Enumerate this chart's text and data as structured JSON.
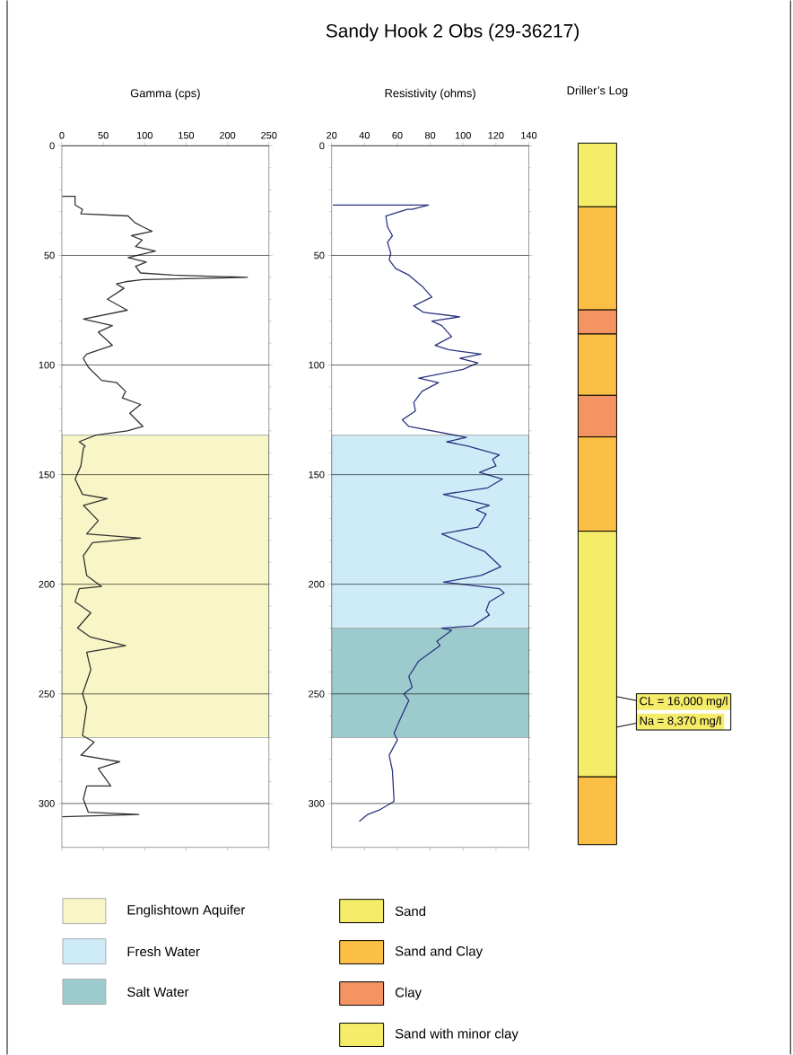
{
  "chart_data": [
    {
      "type": "line",
      "xlabel": "Gamma (cps)",
      "xlim": [
        0,
        250
      ],
      "xticks": [
        0,
        50,
        100,
        150,
        200,
        250
      ],
      "ylim": [
        320,
        0
      ],
      "yticks": [
        0,
        50,
        100,
        150,
        200,
        250,
        300
      ],
      "grid": "y",
      "legend": "bottom",
      "bands": [
        {
          "axis": "y",
          "from": 132,
          "to": 270,
          "label": "Englishtown Aquifer",
          "color": "#f8f6c6"
        }
      ],
      "series": [
        {
          "color": "#333333",
          "x": [
            1,
            16,
            16,
            25,
            23,
            80,
            88,
            98,
            109,
            84,
            97,
            89,
            113,
            80,
            102,
            89,
            95,
            134,
            224,
            98,
            77,
            66,
            75,
            55,
            79,
            26,
            61,
            44,
            61,
            30,
            26,
            32,
            48,
            66,
            77,
            73,
            95,
            82,
            98,
            79,
            41,
            21,
            28,
            26,
            23,
            16,
            25,
            55,
            26,
            44,
            30,
            95,
            37,
            26,
            30,
            48,
            21,
            16,
            35,
            19,
            34,
            77,
            30,
            35,
            25,
            30,
            25,
            39,
            23,
            70,
            44,
            59,
            30,
            26,
            32,
            93,
            1
          ],
          "values": [
            23,
            23,
            27,
            29,
            31,
            32,
            35,
            37,
            39,
            41,
            43,
            46,
            48,
            51,
            53,
            55,
            58,
            59,
            60,
            61,
            62,
            63,
            65,
            70,
            75,
            79,
            82,
            85,
            91,
            95,
            97,
            101,
            107,
            108,
            112,
            115,
            118,
            122,
            128,
            130,
            132,
            135,
            137,
            138,
            146,
            152,
            159,
            161,
            164,
            171,
            177,
            179,
            181,
            187,
            196,
            201,
            202,
            208,
            213,
            220,
            224,
            228,
            231,
            239,
            250,
            256,
            269,
            272,
            278,
            281,
            284,
            292,
            292,
            298,
            304,
            305,
            306
          ]
        }
      ]
    },
    {
      "type": "line",
      "title": "Sandy Hook 2 Obs (29-36217)",
      "xlabel": "Resistivity (ohms)",
      "xlim": [
        20,
        140
      ],
      "xticks": [
        20,
        40,
        60,
        80,
        100,
        120,
        140
      ],
      "ylim": [
        320,
        0
      ],
      "yticks": [
        0,
        50,
        100,
        150,
        200,
        250,
        300
      ],
      "grid": "y",
      "legend": "bottom",
      "bands": [
        {
          "axis": "y",
          "from": 132,
          "to": 220,
          "label": "Fresh Water",
          "color": "#cdecf8"
        },
        {
          "axis": "y",
          "from": 220,
          "to": 270,
          "label": "Salt Water",
          "color": "#9ccbcd"
        }
      ],
      "series": [
        {
          "color": "#2b3580",
          "x": [
            21,
            79,
            69,
            66,
            53,
            54,
            57,
            54,
            56,
            55,
            59,
            67,
            75,
            81,
            70,
            76,
            98,
            81,
            87,
            93,
            83,
            91,
            111,
            98,
            109,
            100,
            73,
            85,
            75,
            70,
            71,
            63,
            67,
            102,
            90,
            103,
            122,
            118,
            120,
            110,
            124,
            115,
            88,
            116,
            108,
            114,
            109,
            87,
            93,
            106,
            113,
            123,
            111,
            88,
            122,
            125,
            116,
            114,
            116,
            106,
            87,
            93,
            84,
            86,
            73,
            67,
            69,
            64,
            67,
            62,
            58,
            60,
            55,
            57,
            58,
            49,
            42,
            37
          ],
          "values": [
            27,
            27,
            29,
            29,
            32,
            37,
            41,
            44,
            49,
            52,
            56,
            59,
            64,
            69,
            73,
            76,
            78,
            80,
            82,
            87,
            91,
            93,
            95,
            97,
            99,
            102,
            106,
            108,
            112,
            117,
            121,
            125,
            128,
            133,
            135,
            137,
            141,
            143,
            146,
            149,
            152,
            156,
            159,
            164,
            166,
            168,
            174,
            177,
            179,
            183,
            185,
            192,
            196,
            199,
            202,
            204,
            208,
            212,
            214,
            219,
            220,
            221,
            226,
            228,
            235,
            242,
            247,
            250,
            253,
            261,
            268,
            271,
            278,
            285,
            299,
            303,
            305,
            308
          ]
        }
      ]
    },
    {
      "type": "bar",
      "stacked": true,
      "xlabel": "Driller’s Log",
      "categories": [
        null
      ],
      "ylim": [
        320,
        0
      ],
      "legend": "bottom",
      "annotations": [
        "CL = 16,000 mg/l",
        "Na = 8,370 mg/l"
      ],
      "series": [
        {
          "name": "Sand",
          "color": "#f5ec6a",
          "values": [
            29
          ]
        },
        {
          "name": "Sand and Clay",
          "color": "#fbbf45",
          "values": [
            47
          ]
        },
        {
          "name": "Clay",
          "color": "#f59463",
          "values": [
            11
          ]
        },
        {
          "color": "#fbbf45",
          "values": [
            28
          ]
        },
        {
          "color": "#f59463",
          "values": [
            19
          ]
        },
        {
          "color": "#fbbf45",
          "values": [
            43
          ]
        },
        {
          "name": "Sand with minor clay",
          "color": "#f5ec6a",
          "values": [
            112
          ]
        },
        {
          "color": "#fbbf45",
          "values": [
            31
          ]
        }
      ]
    }
  ]
}
